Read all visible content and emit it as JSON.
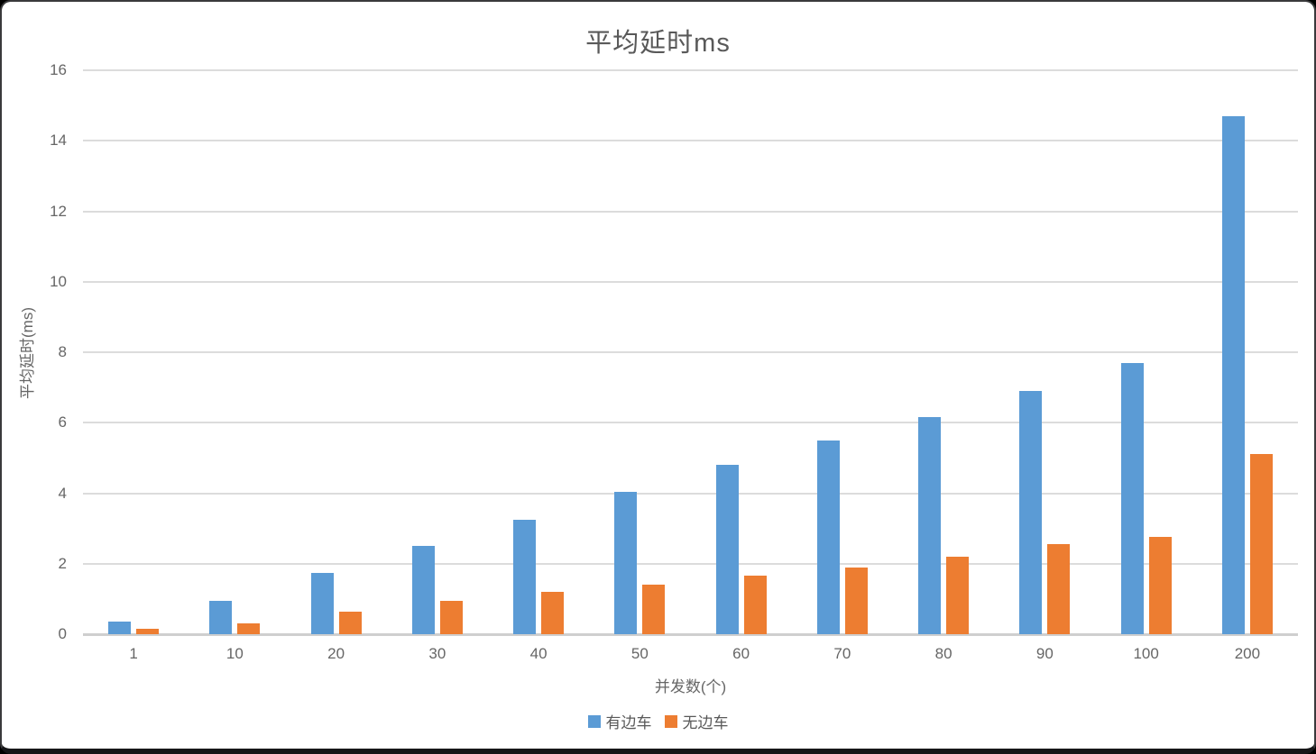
{
  "window": {
    "background": "#ffffff",
    "frame_border_color": "#3a3a3c"
  },
  "chart_data": {
    "type": "bar",
    "title": "平均延时ms",
    "xlabel": "并发数(个)",
    "ylabel": "平均延时(ms)",
    "categories": [
      "1",
      "10",
      "20",
      "30",
      "40",
      "50",
      "60",
      "70",
      "80",
      "90",
      "100",
      "200"
    ],
    "series": [
      {
        "name": "有边车",
        "color": "#5B9BD5",
        "values": [
          0.35,
          0.95,
          1.75,
          2.5,
          3.25,
          4.05,
          4.8,
          5.5,
          6.15,
          6.9,
          7.7,
          14.7
        ]
      },
      {
        "name": "无边车",
        "color": "#ED7D31",
        "values": [
          0.15,
          0.3,
          0.65,
          0.95,
          1.2,
          1.4,
          1.65,
          1.9,
          2.2,
          2.55,
          2.75,
          5.1
        ]
      }
    ],
    "ylim": [
      0,
      16
    ],
    "yticks": [
      0,
      2,
      4,
      6,
      8,
      10,
      12,
      14,
      16
    ],
    "grid": true,
    "legend_position": "bottom",
    "colors": {
      "gridline": "#dcdcdc",
      "axis_line": "#cfcfcf",
      "tick_text": "#666666",
      "title_text": "#595959"
    }
  }
}
